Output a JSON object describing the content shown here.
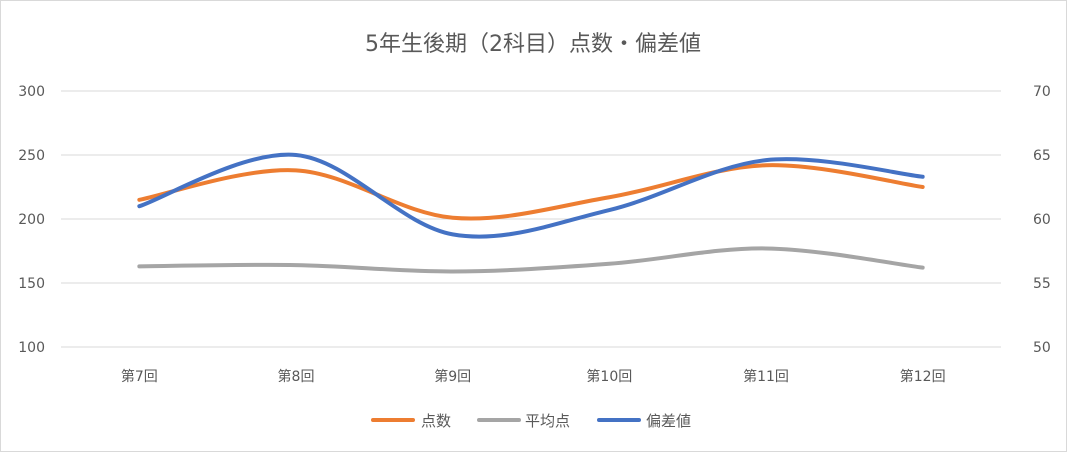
{
  "chart_data": {
    "type": "line",
    "title": "5年生後期（2科目）点数・偏差値",
    "categories": [
      "第7回",
      "第8回",
      "第9回",
      "第10回",
      "第11回",
      "第12回"
    ],
    "left_axis": {
      "ticks": [
        100,
        150,
        200,
        250,
        300
      ],
      "labels": [
        "100",
        "150",
        "200",
        "250",
        "300"
      ],
      "range": [
        100,
        300
      ]
    },
    "right_axis": {
      "ticks": [
        50,
        55,
        60,
        65,
        70
      ],
      "labels": [
        "50",
        "55",
        "60",
        "65",
        "70"
      ],
      "range": [
        50,
        70
      ]
    },
    "grid": true,
    "legend_position": "bottom",
    "series": [
      {
        "name": "点数",
        "axis": "left",
        "color": "#ED7D31",
        "values": [
          215,
          238,
          201,
          217,
          242,
          225
        ]
      },
      {
        "name": "平均点",
        "axis": "left",
        "color": "#A5A5A5",
        "values": [
          163,
          164,
          159,
          165,
          177,
          162
        ]
      },
      {
        "name": "偏差値",
        "axis": "right",
        "color": "#4472C4",
        "values": [
          61.0,
          65.0,
          58.8,
          60.7,
          64.6,
          63.3
        ]
      }
    ]
  }
}
